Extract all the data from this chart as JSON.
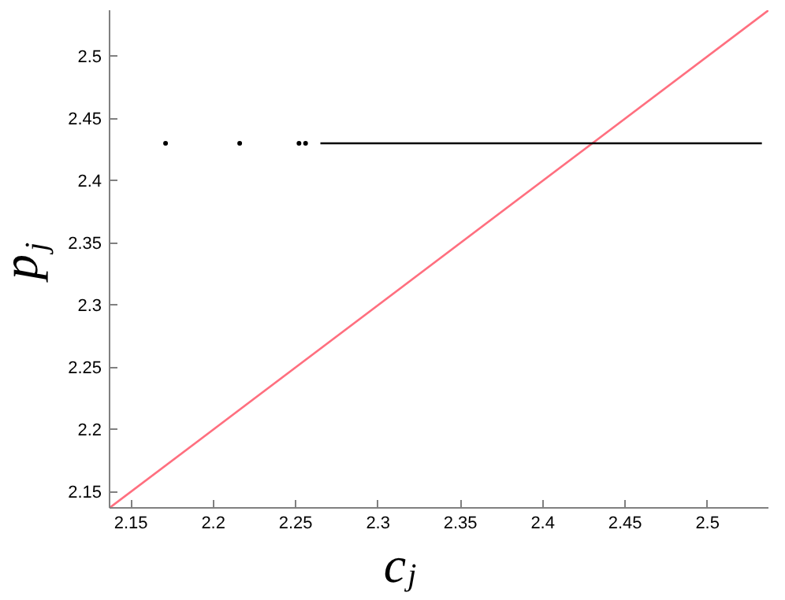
{
  "chart_data": {
    "type": "line",
    "xlabel": "c$_{j}$",
    "ylabel": "p$_{j}$",
    "xlim": [
      2.137,
      2.537
    ],
    "ylim": [
      2.137,
      2.537
    ],
    "xticks": [
      2.15,
      2.2,
      2.25,
      2.3,
      2.35,
      2.4,
      2.45,
      2.5
    ],
    "yticks": [
      2.15,
      2.2,
      2.25,
      2.3,
      2.35,
      2.4,
      2.45,
      2.5
    ],
    "grid": false,
    "series": [
      {
        "type": "line",
        "color": "#ff6f7f",
        "x": [
          2.137,
          2.537
        ],
        "values": [
          2.137,
          2.537
        ]
      },
      {
        "type": "line",
        "color": "#000000",
        "x": [
          2.265,
          2.533
        ],
        "values": [
          2.43,
          2.43
        ]
      },
      {
        "type": "scatter",
        "color": "#000000",
        "x": [
          2.171,
          2.216,
          2.252,
          2.256
        ],
        "values": [
          2.43,
          2.43,
          2.43,
          2.43
        ]
      }
    ]
  }
}
